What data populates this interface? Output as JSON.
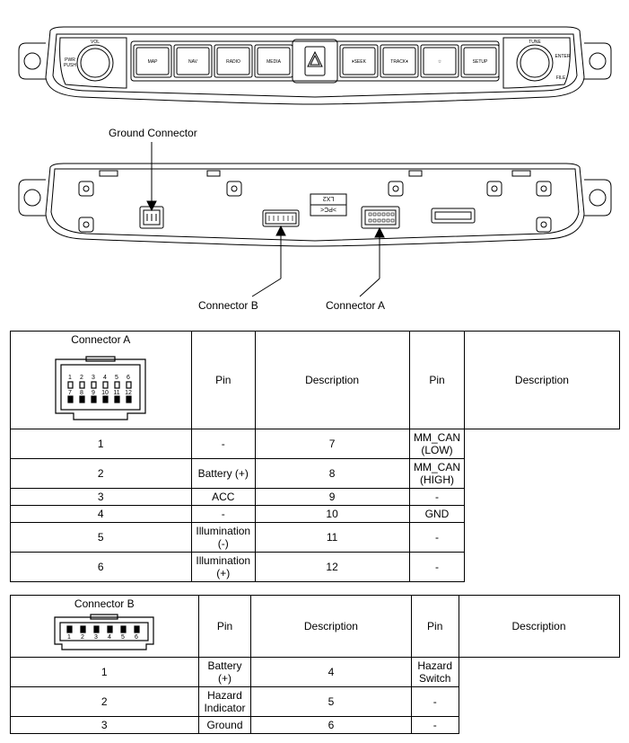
{
  "labels": {
    "ground_connector": "Ground Connector",
    "connector_b": "Connector B",
    "connector_a": "Connector A"
  },
  "front_panel": {
    "left_knob_top": "VOL",
    "left_knob_side": "PWR\nPUSH",
    "right_knob_top": "TUNE",
    "right_knob_right": "ENTER",
    "right_knob_bottom": "FILE",
    "buttons": [
      "MAP",
      "NAV",
      "RADIO",
      "MEDIA",
      "⏵SEEK",
      "TRACK⏴",
      "☆",
      "SETUP"
    ]
  },
  "rear_text": {
    "code1": "LX2",
    "code2": ">PC<"
  },
  "tableA": {
    "header": "Connector A",
    "columns": [
      "Pin",
      "Description",
      "Pin",
      "Description"
    ],
    "rows": [
      [
        "1",
        "-",
        "7",
        "MM_CAN (LOW)"
      ],
      [
        "2",
        "Battery (+)",
        "8",
        "MM_CAN (HIGH)"
      ],
      [
        "3",
        "ACC",
        "9",
        "-"
      ],
      [
        "4",
        "-",
        "10",
        "GND"
      ],
      [
        "5",
        "Illumination (-)",
        "11",
        "-"
      ],
      [
        "6",
        "Illumination (+)",
        "12",
        "-"
      ]
    ],
    "pin_top": [
      "1",
      "2",
      "3",
      "4",
      "5",
      "6"
    ],
    "pin_bot": [
      "7",
      "8",
      "9",
      "10",
      "11",
      "12"
    ]
  },
  "tableB": {
    "header": "Connector B",
    "columns": [
      "Pin",
      "Description",
      "Pin",
      "Description"
    ],
    "rows": [
      [
        "1",
        "Battery (+)",
        "4",
        "Hazard Switch"
      ],
      [
        "2",
        "Hazard Indicator",
        "5",
        "-"
      ],
      [
        "3",
        "Ground",
        "6",
        "-"
      ]
    ],
    "pin_labels": [
      "1",
      "2",
      "3",
      "4",
      "5",
      "6"
    ]
  },
  "style": {
    "stroke": "#000000",
    "bg": "#ffffff",
    "font_size_label": 12,
    "font_size_table": 12,
    "font_size_pin": 7,
    "table_border": "#000000"
  }
}
